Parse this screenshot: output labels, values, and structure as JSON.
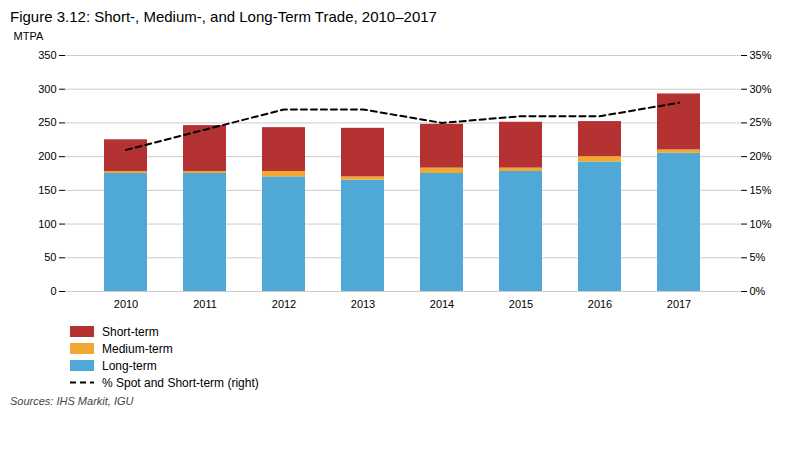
{
  "chart_data": {
    "type": "bar",
    "title": "Figure 3.12: Short-, Medium-, and Long-Term Trade, 2010–2017",
    "caption": "Sources: IHS Markit, IGU",
    "ylabel": "MTPA",
    "categories": [
      "2010",
      "2011",
      "2012",
      "2013",
      "2014",
      "2015",
      "2016",
      "2017"
    ],
    "stacked": true,
    "grid": true,
    "series": [
      {
        "name": "Short-term",
        "color": "#b53232",
        "values": [
          47,
          68,
          65,
          72,
          65,
          68,
          52,
          83
        ]
      },
      {
        "name": "Medium-term",
        "color": "#f0a830",
        "values": [
          3,
          3,
          8,
          5,
          8,
          5,
          8,
          5
        ]
      },
      {
        "name": "Long-term",
        "color": "#4fa8d5",
        "values": [
          175,
          175,
          170,
          165,
          175,
          178,
          192,
          205
        ]
      },
      {
        "name": "% Spot and Short-term (right)",
        "type": "line",
        "axis": "y2",
        "color": "#000000",
        "line_style": "dashed",
        "values": [
          0.21,
          0.24,
          0.27,
          0.27,
          0.25,
          0.26,
          0.26,
          0.28
        ]
      }
    ],
    "ylim": [
      0,
      350
    ],
    "yticks": [
      0,
      50,
      100,
      150,
      200,
      250,
      300,
      350
    ],
    "y2lim": [
      0,
      0.35
    ],
    "y2ticks": [
      {
        "value": 0.0,
        "label": "0%"
      },
      {
        "value": 0.05,
        "label": "5%"
      },
      {
        "value": 0.1,
        "label": "10%"
      },
      {
        "value": 0.15,
        "label": "15%"
      },
      {
        "value": 0.2,
        "label": "20%"
      },
      {
        "value": 0.25,
        "label": "25%"
      },
      {
        "value": 0.3,
        "label": "30%"
      },
      {
        "value": 0.35,
        "label": "35%"
      }
    ]
  }
}
